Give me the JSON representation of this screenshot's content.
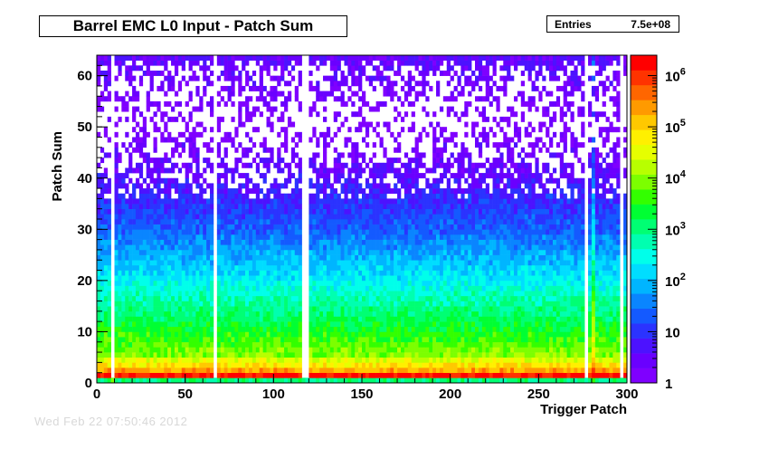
{
  "chart_data": {
    "type": "heatmap",
    "title": "Barrel EMC L0 Input - Patch Sum",
    "xlabel": "Trigger Patch",
    "ylabel": "Patch Sum",
    "xlim": [
      0,
      300
    ],
    "ylim": [
      0,
      64
    ],
    "x_ticks": [
      "0",
      "50",
      "100",
      "150",
      "200",
      "250",
      "300"
    ],
    "y_ticks": [
      "0",
      "10",
      "20",
      "30",
      "40",
      "50",
      "60"
    ],
    "z_scale": "log",
    "z_range": [
      1,
      2500000
    ],
    "z_ticks": [
      "1",
      "10",
      "10^2",
      "10^3",
      "10^4",
      "10^5",
      "10^6"
    ],
    "stats": {
      "entries_label": "Entries",
      "entries_value": "7.5e+08"
    },
    "profile": {
      "description_levels_log10": [
        {
          "patch_sum": 0,
          "log10_count": 3.0
        },
        {
          "patch_sum": 1,
          "log10_count": 6.2
        },
        {
          "patch_sum": 2,
          "log10_count": 5.3
        },
        {
          "patch_sum": 5,
          "log10_count": 4.0
        },
        {
          "patch_sum": 10,
          "log10_count": 3.4
        },
        {
          "patch_sum": 20,
          "log10_count": 2.3
        },
        {
          "patch_sum": 30,
          "log10_count": 1.3
        },
        {
          "patch_sum": 40,
          "log10_count": 0.6
        },
        {
          "patch_sum": 50,
          "log10_count": 0.1
        },
        {
          "patch_sum": 62,
          "log10_count": 0.5
        }
      ],
      "dead_patches": [
        9,
        67,
        117,
        118,
        277,
        296
      ],
      "hot_patches": [
        8,
        281
      ]
    },
    "palette": [
      "#7f00ff",
      "#6a00ff",
      "#4c12ff",
      "#2b33ff",
      "#145aff",
      "#0a85ff",
      "#00b5ff",
      "#00ddff",
      "#00ffea",
      "#00ffb0",
      "#00ff73",
      "#00ff33",
      "#33ff00",
      "#7cff00",
      "#b8ff00",
      "#e6ff00",
      "#fff000",
      "#ffc800",
      "#ff9a00",
      "#ff6600",
      "#ff3300",
      "#ff0000"
    ]
  },
  "footer_ghost": "Wed Feb 22 07:50:46 2012"
}
